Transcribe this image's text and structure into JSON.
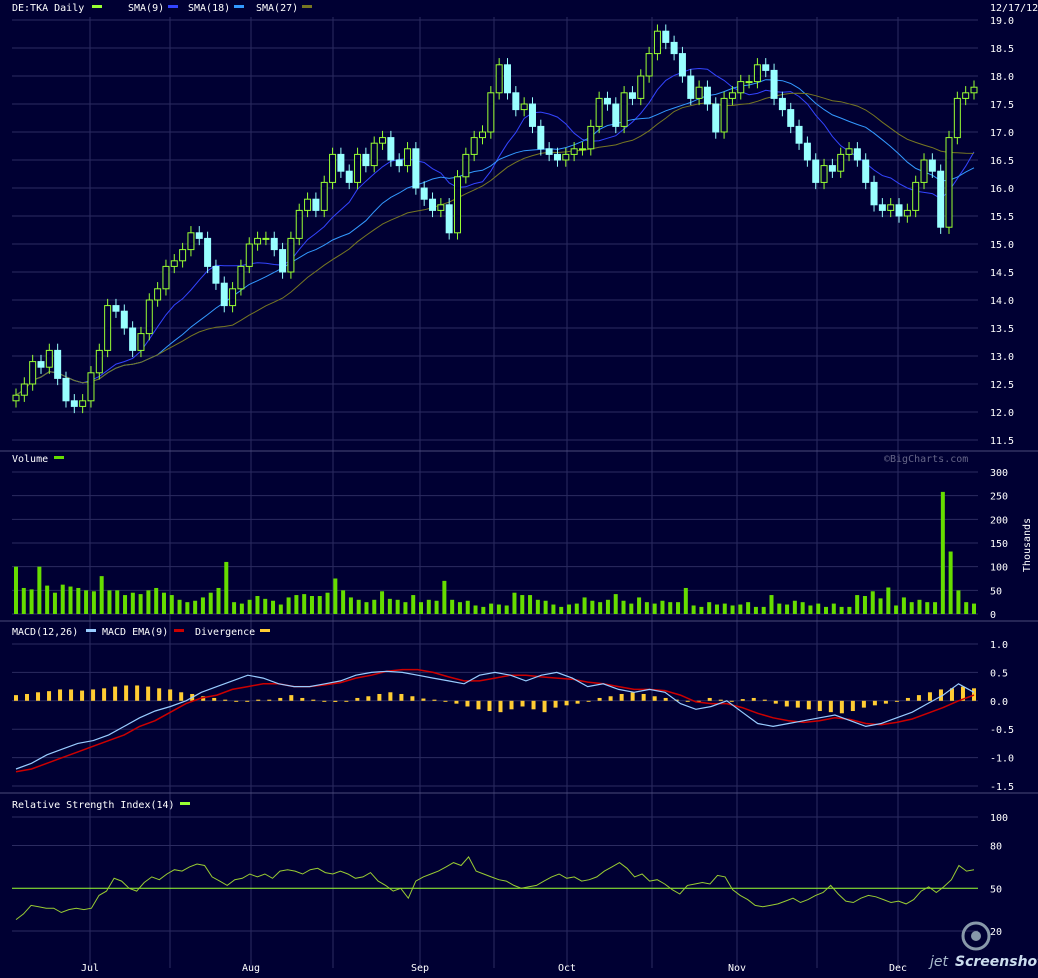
{
  "colors": {
    "background": "#000033",
    "grid": "#2b2b60",
    "panel_border": "#4a4a7a",
    "text": "#ffffff",
    "up_candle": "#99ff33",
    "down_candle": "#99ffff",
    "volume_bar": "#66dd00",
    "sma9": "#3344ff",
    "sma18": "#3399ff",
    "sma27": "#777722",
    "macd": "#99ccff",
    "macd_ema": "#cc0000",
    "divergence": "#ffcc33",
    "rsi": "#99cc33",
    "rsi_line50": "#99ff33"
  },
  "header": {
    "symbol_label": "DE:TKA Daily",
    "sma9_label": "SMA(9)",
    "sma18_label": "SMA(18)",
    "sma27_label": "SMA(27)",
    "date": "12/17/12"
  },
  "watermark": "©BigCharts.com",
  "volume_panel": {
    "label": "Volume",
    "unit_label": "Thousands"
  },
  "macd_panel": {
    "macd_label": "MACD(12,26)",
    "ema_label": "MACD EMA(9)",
    "div_label": "Divergence"
  },
  "rsi_panel": {
    "label": "Relative Strength Index(14)"
  },
  "brand": {
    "text1": "jet",
    "text2": "Screenshot"
  },
  "chart_data": [
    {
      "type": "candlestick",
      "series_names": [
        "SMA(9)",
        "SMA(18)",
        "SMA(27)"
      ],
      "ylim": [
        11.5,
        19.0
      ],
      "y_ticks": [
        "19.0",
        "18.5",
        "18.0",
        "17.5",
        "17.0",
        "16.5",
        "16.0",
        "15.5",
        "15.0",
        "14.5",
        "14.0",
        "13.5",
        "13.0",
        "12.5",
        "12.0",
        "11.5"
      ],
      "x_labels": [
        "Jul",
        "Aug",
        "Sep",
        "Oct",
        "Nov",
        "Dec"
      ],
      "close": [
        12.3,
        12.5,
        12.9,
        12.8,
        13.1,
        12.6,
        12.2,
        12.1,
        12.2,
        12.7,
        13.1,
        13.9,
        13.8,
        13.5,
        13.1,
        13.4,
        14.0,
        14.2,
        14.6,
        14.7,
        14.9,
        15.2,
        15.1,
        14.6,
        14.3,
        13.9,
        14.2,
        14.6,
        15.0,
        15.1,
        15.1,
        14.9,
        14.5,
        15.1,
        15.6,
        15.8,
        15.6,
        16.1,
        16.6,
        16.3,
        16.1,
        16.6,
        16.4,
        16.8,
        16.9,
        16.5,
        16.4,
        16.7,
        16.0,
        15.8,
        15.6,
        15.7,
        15.2,
        16.2,
        16.6,
        16.9,
        17.0,
        17.7,
        18.2,
        17.7,
        17.4,
        17.5,
        17.1,
        16.7,
        16.6,
        16.5,
        16.6,
        16.7,
        16.7,
        17.1,
        17.6,
        17.5,
        17.1,
        17.7,
        17.6,
        18.0,
        18.4,
        18.8,
        18.6,
        18.4,
        18.0,
        17.6,
        17.8,
        17.5,
        17.0,
        17.6,
        17.7,
        17.9,
        17.9,
        18.2,
        18.1,
        17.6,
        17.4,
        17.1,
        16.8,
        16.5,
        16.1,
        16.4,
        16.3,
        16.6,
        16.7,
        16.5,
        16.1,
        15.7,
        15.6,
        15.7,
        15.5,
        15.6,
        16.1,
        16.5,
        16.3,
        15.3,
        16.9,
        17.6,
        17.7,
        17.8
      ]
    },
    {
      "type": "bar",
      "name": "Volume",
      "ylim": [
        0,
        300
      ],
      "y_ticks": [
        "300",
        "250",
        "200",
        "150",
        "100",
        "50",
        "0"
      ],
      "values": [
        100,
        55,
        52,
        100,
        60,
        45,
        62,
        58,
        55,
        50,
        48,
        80,
        50,
        50,
        40,
        45,
        42,
        50,
        55,
        45,
        40,
        30,
        25,
        28,
        35,
        45,
        55,
        110,
        25,
        22,
        30,
        38,
        32,
        28,
        20,
        35,
        40,
        42,
        38,
        38,
        45,
        75,
        50,
        35,
        30,
        25,
        30,
        48,
        32,
        30,
        25,
        40,
        25,
        30,
        28,
        70,
        30,
        25,
        28,
        18,
        15,
        22,
        20,
        18,
        45,
        40,
        40,
        30,
        28,
        20,
        15,
        20,
        22,
        35,
        28,
        25,
        30,
        42,
        28,
        22,
        35,
        25,
        22,
        28,
        25,
        25,
        55,
        18,
        15,
        25,
        20,
        22,
        18,
        20,
        25,
        15,
        15,
        40,
        22,
        20,
        28,
        25,
        18,
        22,
        15,
        22,
        15,
        15,
        40,
        38,
        48,
        33,
        56,
        18,
        35,
        25,
        30,
        25,
        25,
        258,
        132,
        50,
        25,
        22
      ]
    },
    {
      "type": "line",
      "name": "MACD",
      "ylim": [
        -1.5,
        1.0
      ],
      "y_ticks": [
        "1.0",
        "0.5",
        "0.0",
        "-0.5",
        "-1.0",
        "-1.5"
      ],
      "macd": [
        -1.2,
        -1.1,
        -0.95,
        -0.85,
        -0.75,
        -0.7,
        -0.6,
        -0.45,
        -0.3,
        -0.18,
        -0.1,
        0,
        0.15,
        0.25,
        0.35,
        0.45,
        0.4,
        0.3,
        0.25,
        0.25,
        0.3,
        0.35,
        0.45,
        0.5,
        0.52,
        0.5,
        0.45,
        0.4,
        0.35,
        0.3,
        0.45,
        0.5,
        0.45,
        0.35,
        0.45,
        0.5,
        0.4,
        0.25,
        0.3,
        0.2,
        0.15,
        0.2,
        0.15,
        -0.05,
        -0.15,
        -0.1,
        0,
        -0.2,
        -0.4,
        -0.45,
        -0.4,
        -0.35,
        -0.3,
        -0.25,
        -0.35,
        -0.45,
        -0.4,
        -0.3,
        -0.2,
        -0.05,
        0.1,
        0.3,
        0.15
      ],
      "macd_ema": [
        -1.25,
        -1.2,
        -1.1,
        -1.0,
        -0.9,
        -0.8,
        -0.7,
        -0.6,
        -0.45,
        -0.35,
        -0.2,
        -0.05,
        0.05,
        0.1,
        0.2,
        0.25,
        0.3,
        0.3,
        0.25,
        0.25,
        0.28,
        0.32,
        0.4,
        0.45,
        0.52,
        0.55,
        0.55,
        0.5,
        0.42,
        0.35,
        0.35,
        0.4,
        0.45,
        0.45,
        0.42,
        0.4,
        0.38,
        0.33,
        0.3,
        0.25,
        0.2,
        0.2,
        0.18,
        0.1,
        -0.02,
        -0.05,
        -0.05,
        -0.12,
        -0.22,
        -0.3,
        -0.35,
        -0.38,
        -0.35,
        -0.3,
        -0.33,
        -0.4,
        -0.42,
        -0.38,
        -0.32,
        -0.22,
        -0.12,
        0,
        0.1
      ],
      "divergence": [
        0.1,
        0.12,
        0.15,
        0.17,
        0.2,
        0.2,
        0.18,
        0.2,
        0.22,
        0.25,
        0.27,
        0.27,
        0.25,
        0.22,
        0.2,
        0.15,
        0.12,
        0.08,
        0.05,
        0.02,
        0,
        0,
        0.02,
        0.02,
        0.05,
        0.1,
        0.05,
        0.02,
        0,
        -0.02,
        0,
        0.05,
        0.08,
        0.12,
        0.15,
        0.12,
        0.08,
        0.04,
        0.02,
        0,
        -0.05,
        -0.1,
        -0.15,
        -0.18,
        -0.2,
        -0.15,
        -0.1,
        -0.15,
        -0.2,
        -0.12,
        -0.08,
        -0.05,
        0,
        0.05,
        0.08,
        0.12,
        0.15,
        0.12,
        0.08,
        0.05,
        0.02,
        0,
        -0.02,
        0.05,
        0.02,
        0,
        0.03,
        0.05,
        0.02,
        -0.05,
        -0.1,
        -0.12,
        -0.15,
        -0.18,
        -0.2,
        -0.22,
        -0.18,
        -0.12,
        -0.08,
        -0.05,
        0,
        0.05,
        0.1,
        0.15,
        0.2,
        0.22,
        0.25,
        0.22
      ]
    },
    {
      "type": "line",
      "name": "Relative Strength Index(14)",
      "ylim": [
        20,
        100
      ],
      "y_ticks": [
        "100",
        "80",
        "50",
        "20"
      ],
      "reference_line": 50,
      "values": [
        28,
        32,
        38,
        37,
        36,
        36,
        33,
        35,
        36,
        35,
        36,
        45,
        48,
        57,
        55,
        50,
        48,
        54,
        58,
        56,
        60,
        63,
        62,
        65,
        67,
        66,
        58,
        55,
        52,
        56,
        57,
        60,
        58,
        60,
        57,
        62,
        63,
        62,
        60,
        63,
        64,
        61,
        60,
        62,
        60,
        57,
        58,
        61,
        55,
        52,
        48,
        50,
        43,
        55,
        58,
        60,
        62,
        65,
        68,
        66,
        72,
        62,
        60,
        58,
        56,
        55,
        52,
        50,
        51,
        52,
        55,
        58,
        60,
        57,
        58,
        55,
        56,
        58,
        62,
        65,
        68,
        64,
        58,
        60,
        55,
        56,
        53,
        49,
        46,
        52,
        53,
        54,
        53,
        59,
        58,
        49,
        45,
        42,
        38,
        37,
        38,
        39,
        41,
        43,
        40,
        42,
        45,
        47,
        52,
        46,
        41,
        40,
        43,
        45,
        44,
        42,
        40,
        41,
        39,
        42,
        48,
        51,
        47,
        51,
        56,
        66,
        62,
        63
      ]
    }
  ]
}
